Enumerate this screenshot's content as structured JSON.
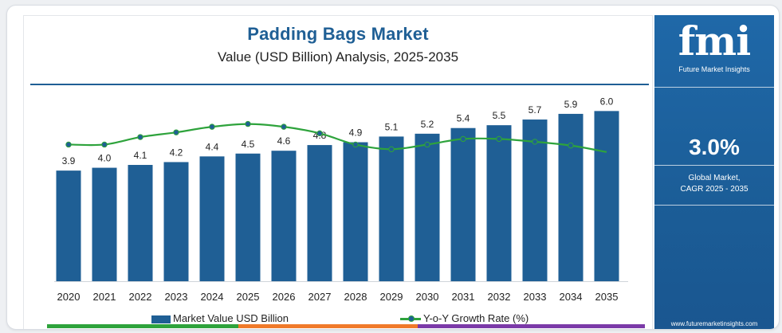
{
  "chart_data": {
    "type": "bar",
    "title": "Padding Bags Market",
    "subtitle": "Value (USD Billion) Analysis, 2025-2035",
    "categories": [
      "2020",
      "2021",
      "2022",
      "2023",
      "2024",
      "2025",
      "2026",
      "2027",
      "2028",
      "2029",
      "2030",
      "2031",
      "2032",
      "2033",
      "2034",
      "2035"
    ],
    "series": [
      {
        "name": "Market Value USD Billion",
        "type": "bar",
        "values": [
          3.9,
          4.0,
          4.1,
          4.2,
          4.4,
          4.5,
          4.6,
          4.8,
          4.9,
          5.1,
          5.2,
          5.4,
          5.5,
          5.7,
          5.9,
          6.0
        ],
        "labels": [
          "3.9",
          "4.0",
          "4.1",
          "4.2",
          "4.4",
          "4.5",
          "4.6",
          "4.8",
          "4.9",
          "5.1",
          "5.2",
          "5.4",
          "5.5",
          "5.7",
          "5.9",
          "6.0"
        ]
      },
      {
        "name": "Y-o-Y Growth Rate (%)",
        "type": "line",
        "values": [
          2.6,
          2.6,
          3.4,
          3.9,
          4.5,
          4.8,
          4.5,
          3.8,
          2.6,
          2.1,
          2.6,
          3.2,
          3.2,
          2.9,
          2.5,
          1.8
        ]
      }
    ],
    "ylim": [
      0,
      6.6
    ],
    "line_ylim": [
      -12,
      8
    ],
    "grid": false,
    "legend_position": "bottom",
    "colors": {
      "bar": "#1f5f95",
      "line": "#2ea33c",
      "marker": "#1f5f95"
    }
  },
  "sidebar": {
    "logo_text": "fmi",
    "brand_name": "Future Market Insights",
    "cagr_value": "3.0%",
    "cagr_label_line1": "Global Market,",
    "cagr_label_line2": "CAGR 2025 - 2035",
    "website": "www.futuremarketinsights.com"
  },
  "colors": {
    "accent": "#1f5f95",
    "panel": "#1f68a8"
  }
}
